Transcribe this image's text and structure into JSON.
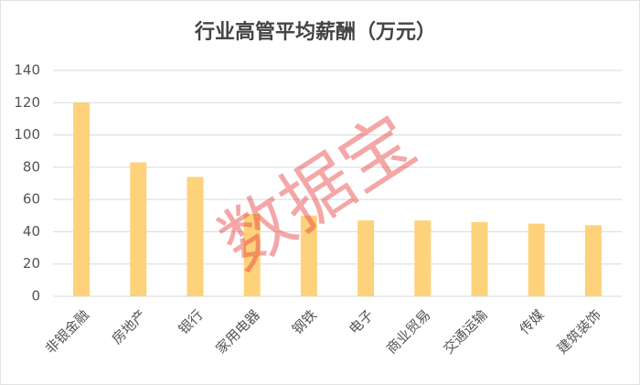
{
  "chart_data": {
    "type": "bar",
    "title": "行业高管平均薪酬（万元）",
    "categories": [
      "非银金融",
      "房地产",
      "银行",
      "家用电器",
      "钢铁",
      "电子",
      "商业贸易",
      "交通运输",
      "传媒",
      "建筑装饰"
    ],
    "values": [
      120,
      83,
      74,
      51,
      50,
      47,
      47,
      46,
      45,
      44
    ],
    "color": "#fdd27b",
    "ylim": [
      0,
      140
    ],
    "yticks": [
      0,
      20,
      40,
      60,
      80,
      100,
      120,
      140
    ],
    "grid": true,
    "watermark": "数据宝"
  }
}
